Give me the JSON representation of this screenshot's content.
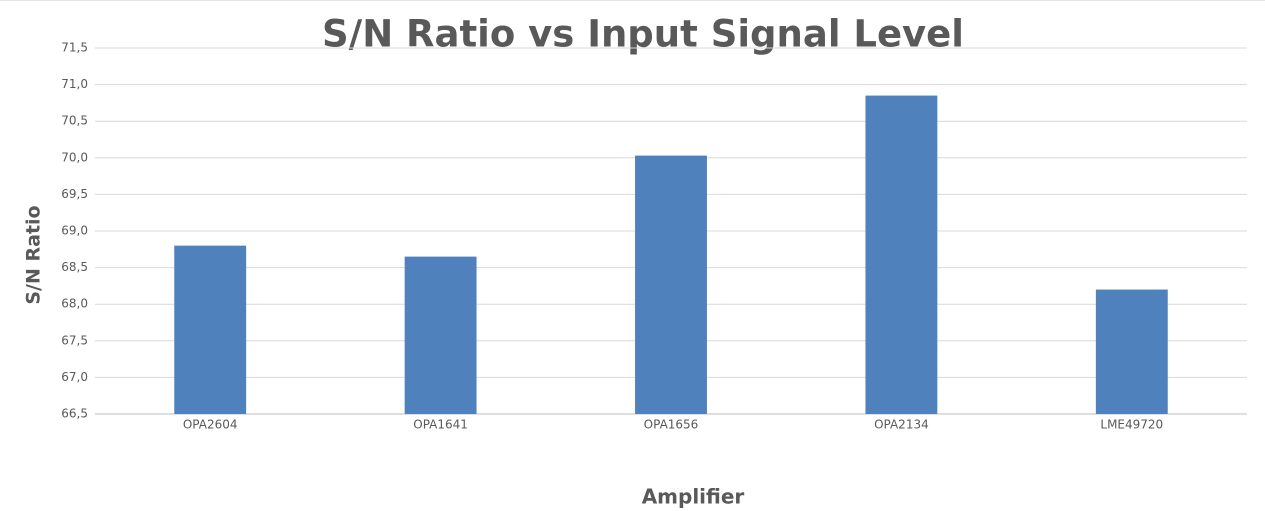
{
  "chart_data": {
    "type": "bar",
    "title": "S/N Ratio vs Input Signal Level",
    "x_label": "Amplifier",
    "y_label": "S/N Ratio",
    "categories": [
      "OPA2604",
      "OPA1641",
      "OPA1656",
      "OPA2134",
      "LME49720"
    ],
    "values": [
      68.8,
      68.65,
      70.03,
      70.85,
      68.2
    ],
    "color": "#4f81bd",
    "ylim": [
      66.5,
      71.5
    ],
    "yticks": [
      {
        "value": 66.5,
        "label": "66,5"
      },
      {
        "value": 67.0,
        "label": "67,0"
      },
      {
        "value": 67.5,
        "label": "67,5"
      },
      {
        "value": 68.0,
        "label": "68,0"
      },
      {
        "value": 68.5,
        "label": "68,5"
      },
      {
        "value": 69.0,
        "label": "69,0"
      },
      {
        "value": 69.5,
        "label": "69,5"
      },
      {
        "value": 70.0,
        "label": "70,0"
      },
      {
        "value": 70.5,
        "label": "70,5"
      },
      {
        "value": 71.0,
        "label": "71,0"
      },
      {
        "value": 71.5,
        "label": "71,5"
      }
    ],
    "grid": true
  }
}
